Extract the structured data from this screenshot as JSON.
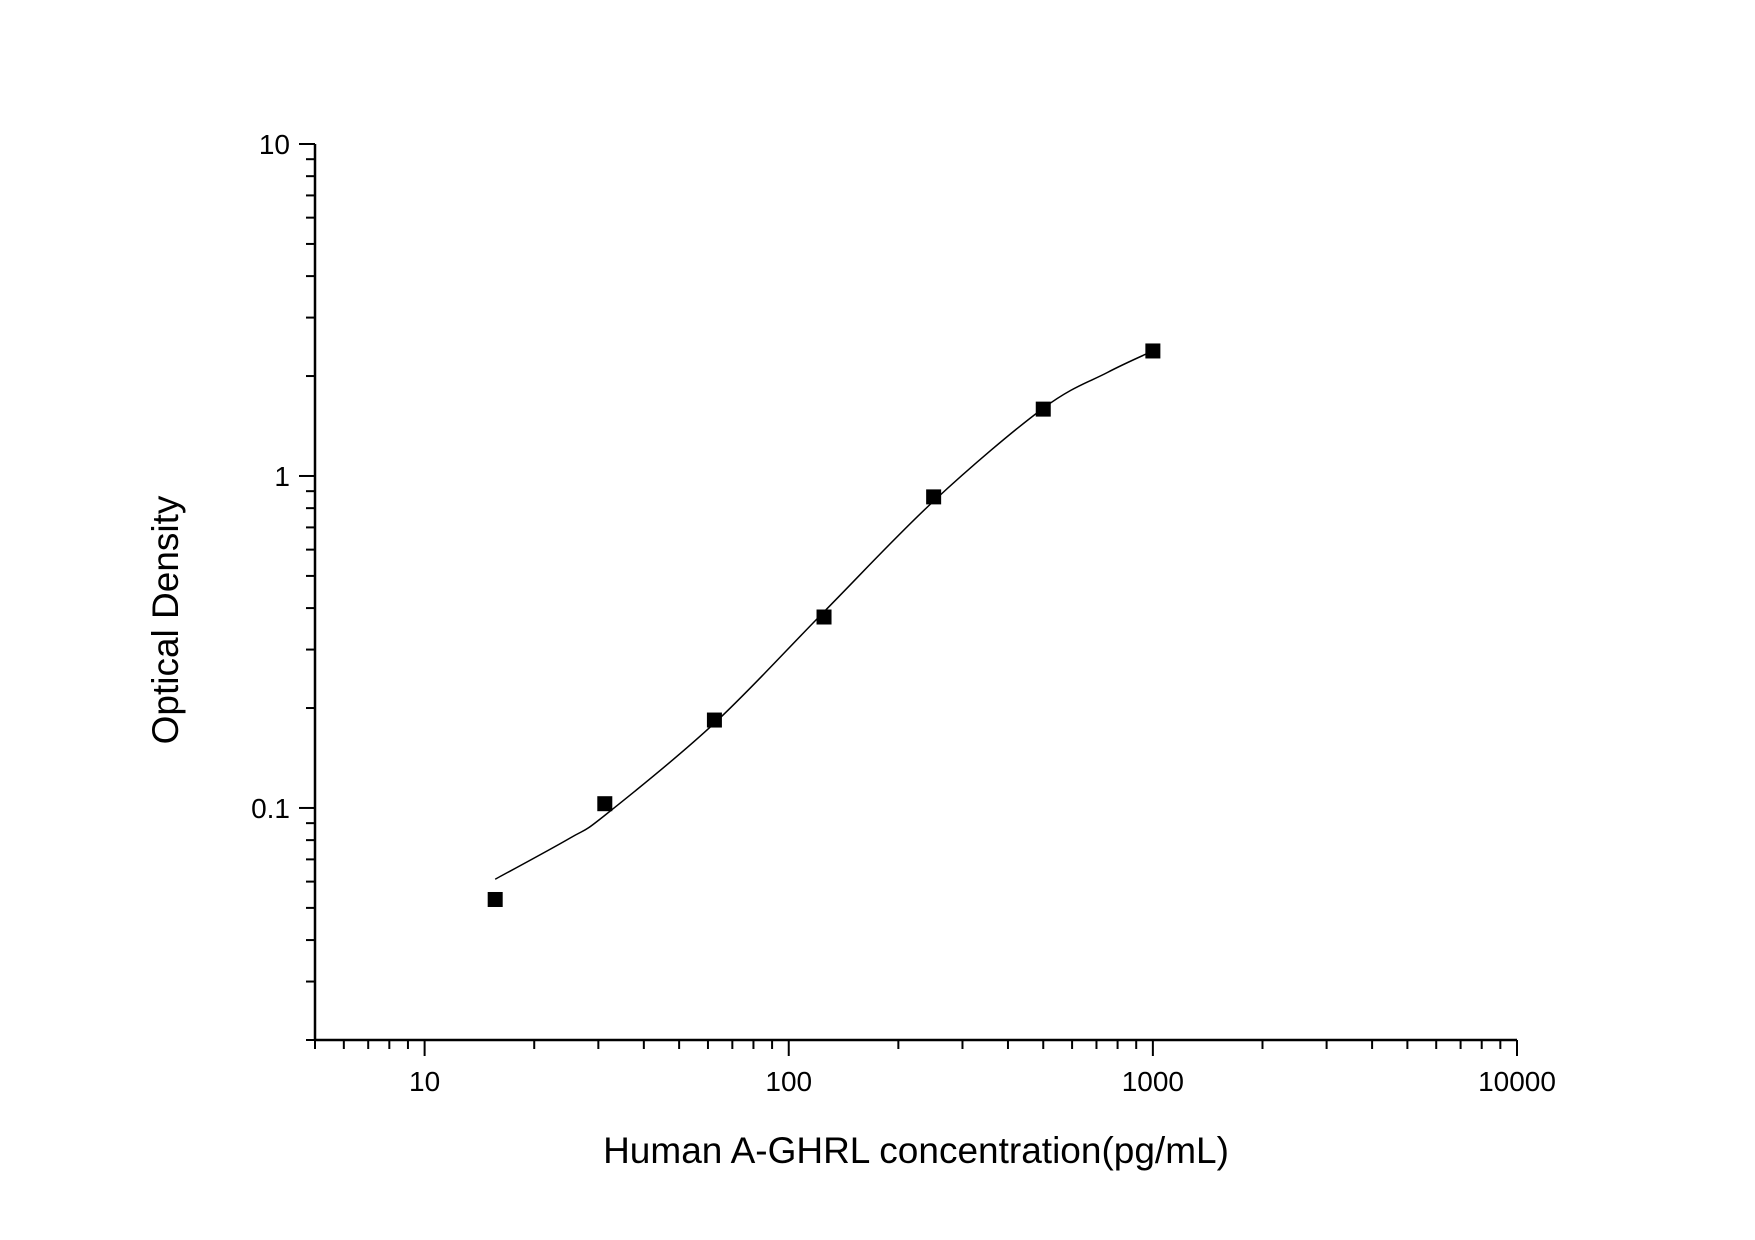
{
  "chart_data": {
    "type": "scatter",
    "title": "",
    "xlabel": "Human A-GHRL concentration(pg/mL)",
    "ylabel": "Optical Density",
    "x_scale": "log",
    "y_scale": "log",
    "xlim": [
      5,
      10000
    ],
    "ylim": [
      0.02,
      10
    ],
    "x_ticks": [
      10,
      100,
      1000,
      10000
    ],
    "x_tick_labels": [
      "10",
      "100",
      "1000",
      "10000"
    ],
    "y_ticks": [
      0.1,
      1,
      10
    ],
    "y_tick_labels": [
      "0.1",
      "1",
      "10"
    ],
    "grid": false,
    "marker": "square",
    "colors": {
      "marker": "#000000",
      "curve": "#000000"
    },
    "points": {
      "x": [
        15.625,
        31.25,
        62.5,
        125,
        250,
        500,
        1000
      ],
      "y": [
        0.053,
        0.103,
        0.184,
        0.376,
        0.865,
        1.59,
        2.38
      ]
    },
    "fit_curve": {
      "x": [
        15.625,
        25,
        31.25,
        62.5,
        125,
        250,
        500,
        750,
        1000
      ],
      "y": [
        0.061,
        0.081,
        0.095,
        0.18,
        0.39,
        0.84,
        1.6,
        2.05,
        2.38
      ]
    }
  }
}
